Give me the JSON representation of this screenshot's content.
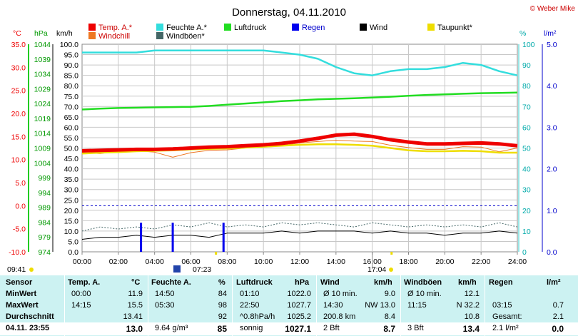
{
  "chart_data": {
    "type": "line",
    "title": "Donnerstag, 04.11.2010",
    "credit": "© Weber Mike",
    "x_label_start": "09:41",
    "x_ticks": [
      "00:00",
      "02:00",
      "04:00",
      "06:00",
      "08:00",
      "10:00",
      "12:00",
      "14:00",
      "16:00",
      "18:00",
      "20:00",
      "22:00",
      "24:00"
    ],
    "sun_marks": [
      "07:23",
      "17:04"
    ],
    "axes": {
      "temp": {
        "unit": "°C",
        "ticks": [
          35.0,
          30.0,
          25.0,
          20.0,
          15.0,
          10.0,
          5.0,
          0.0,
          -5.0,
          -10.0
        ],
        "range": [
          -10,
          35
        ]
      },
      "pressure": {
        "unit": "hPa",
        "ticks": [
          1044,
          1039,
          1034,
          1029,
          1024,
          1019,
          1014,
          1009,
          1004,
          999,
          994,
          989,
          984,
          979,
          974
        ],
        "range": [
          974,
          1044
        ]
      },
      "wind": {
        "unit": "km/h",
        "ticks": [
          100.0,
          95.0,
          90.0,
          85.0,
          80.0,
          75.0,
          70.0,
          65.0,
          60.0,
          55.0,
          50.0,
          45.0,
          40.0,
          35.0,
          30.0,
          25.0,
          20.0,
          15.0,
          10.0,
          5.0,
          0.0
        ],
        "range": [
          0,
          100
        ]
      },
      "humidity": {
        "unit": "%",
        "ticks": [
          100,
          90,
          80,
          70,
          60,
          50,
          40,
          30,
          20,
          10,
          0
        ],
        "range": [
          0,
          100
        ]
      },
      "rain": {
        "unit": "l/m²",
        "ticks": [
          "5.0",
          "4.0",
          "3.0",
          "2.0",
          "1.0",
          "0.0"
        ],
        "range": [
          0,
          5
        ]
      }
    },
    "legend": [
      {
        "name": "Temp. A.*",
        "color": "#ee0000"
      },
      {
        "name": "Feuchte A.*",
        "color": "#33dddd"
      },
      {
        "name": "Luftdruck",
        "color": "#22dd22"
      },
      {
        "name": "Regen",
        "color": "#0000ee"
      },
      {
        "name": "Wind",
        "color": "#000000"
      },
      {
        "name": "Taupunkt*",
        "color": "#eedd00"
      },
      {
        "name": "Windchill",
        "color": "#ee7722"
      },
      {
        "name": "Windböen*",
        "color": "#446666"
      }
    ],
    "series": [
      {
        "name": "Temp. A.*",
        "axis": "temp",
        "color": "#ee0000",
        "x": [
          0,
          1,
          2,
          3,
          4,
          5,
          6,
          7,
          8,
          9,
          10,
          11,
          12,
          13,
          14,
          15,
          16,
          17,
          18,
          19,
          20,
          21,
          22,
          23,
          24
        ],
        "values": [
          11.9,
          12.0,
          12.1,
          12.2,
          12.2,
          12.3,
          12.5,
          12.7,
          12.8,
          13.0,
          13.2,
          13.5,
          14.0,
          14.6,
          15.3,
          15.5,
          15.0,
          14.3,
          13.8,
          13.4,
          13.4,
          13.5,
          13.6,
          13.4,
          13.0
        ]
      },
      {
        "name": "Feuchte A.*",
        "axis": "humidity",
        "color": "#33dddd",
        "x": [
          0,
          1,
          2,
          3,
          4,
          5,
          6,
          7,
          8,
          9,
          10,
          11,
          12,
          13,
          14,
          15,
          16,
          17,
          18,
          19,
          20,
          21,
          22,
          23,
          24
        ],
        "values": [
          96,
          96,
          96,
          96,
          97,
          97,
          97,
          97,
          97,
          97,
          97,
          96,
          95,
          93,
          89,
          86,
          85,
          87,
          88,
          88,
          89,
          91,
          90,
          87,
          85
        ]
      },
      {
        "name": "Luftdruck",
        "axis": "pressure",
        "color": "#22dd22",
        "x": [
          0,
          1,
          2,
          3,
          4,
          5,
          6,
          7,
          8,
          9,
          10,
          11,
          12,
          13,
          14,
          15,
          16,
          17,
          18,
          19,
          20,
          21,
          22,
          23,
          24
        ],
        "values": [
          1022.0,
          1022.3,
          1022.5,
          1022.6,
          1022.7,
          1022.8,
          1022.9,
          1023.2,
          1023.6,
          1024.0,
          1024.4,
          1024.8,
          1025.1,
          1025.4,
          1025.6,
          1025.8,
          1026.0,
          1026.3,
          1026.6,
          1026.9,
          1027.1,
          1027.3,
          1027.5,
          1027.6,
          1027.7
        ]
      },
      {
        "name": "Taupunkt*",
        "axis": "temp",
        "color": "#eedd00",
        "x": [
          0,
          1,
          2,
          3,
          4,
          5,
          6,
          7,
          8,
          9,
          10,
          11,
          12,
          13,
          14,
          15,
          16,
          17,
          18,
          19,
          20,
          21,
          22,
          23,
          24
        ],
        "values": [
          11.3,
          11.5,
          11.6,
          11.8,
          11.9,
          12.0,
          12.2,
          12.3,
          12.4,
          12.6,
          12.8,
          13.0,
          13.2,
          13.3,
          13.3,
          13.2,
          13.0,
          12.5,
          12.0,
          11.8,
          11.8,
          11.9,
          11.8,
          11.5,
          11.5
        ]
      },
      {
        "name": "Windchill",
        "axis": "temp",
        "color": "#ee7722",
        "x": [
          0,
          1,
          2,
          3,
          4,
          5,
          6,
          7,
          8,
          9,
          10,
          11,
          12,
          13,
          14,
          15,
          16,
          17,
          18,
          19,
          20,
          21,
          22,
          23,
          24
        ],
        "values": [
          11.5,
          11.3,
          11.8,
          11.9,
          11.6,
          10.5,
          11.5,
          12.0,
          12.1,
          12.5,
          12.9,
          13.0,
          13.6,
          13.9,
          14.2,
          14.0,
          13.9,
          13.1,
          12.6,
          12.2,
          12.2,
          12.8,
          12.7,
          11.7,
          12.5
        ]
      },
      {
        "name": "Wind",
        "axis": "wind",
        "color": "#000000",
        "x": [
          0,
          1,
          2,
          3,
          4,
          5,
          6,
          7,
          8,
          9,
          10,
          11,
          12,
          13,
          14,
          15,
          16,
          17,
          18,
          19,
          20,
          21,
          22,
          23,
          24
        ],
        "values": [
          6,
          7,
          7,
          8,
          7,
          8,
          8,
          7,
          9,
          9,
          9,
          10,
          9,
          10,
          10,
          10,
          9,
          10,
          9,
          9,
          8,
          9,
          9,
          10,
          9
        ]
      },
      {
        "name": "Windböen*",
        "axis": "wind",
        "color": "#446666",
        "x": [
          0,
          1,
          2,
          3,
          4,
          5,
          6,
          7,
          8,
          9,
          10,
          11,
          12,
          13,
          14,
          15,
          16,
          17,
          18,
          19,
          20,
          21,
          22,
          23,
          24
        ],
        "values": [
          10,
          12,
          11,
          12,
          11,
          13,
          12,
          14,
          12,
          13,
          12,
          14,
          13,
          14,
          13,
          12,
          14,
          13,
          12,
          13,
          12,
          13,
          12,
          14,
          12
        ]
      },
      {
        "name": "Regen",
        "axis": "rain",
        "color": "#0000ee",
        "type": "bar",
        "x": [
          3.25,
          5.0,
          7.8
        ],
        "values": [
          0.7,
          0.7,
          0.7
        ]
      }
    ]
  },
  "stats": {
    "headers": {
      "sensor": "Sensor",
      "temp": "Temp. A.",
      "temp_unit": "°C",
      "hum": "Feuchte A.",
      "hum_unit": "%",
      "press": "Luftdruck",
      "press_unit": "hPa",
      "wind": "Wind",
      "wind_unit": "km/h",
      "gust": "Windböen",
      "gust_unit": "km/h",
      "rain": "Regen",
      "rain_unit": "l/m²"
    },
    "rows": [
      {
        "label": "MinWert",
        "temp_t": "00:00",
        "temp_v": "11.9",
        "hum_t": "14:50",
        "hum_v": "84",
        "press_t": "01:10",
        "press_v": "1022.0",
        "wind_t": "Ø 10 min.",
        "wind_v": "9.0",
        "gust_t": "Ø 10 min.",
        "gust_v": "12.1",
        "rain_t": "",
        "rain_v": ""
      },
      {
        "label": "MaxWert",
        "temp_t": "14:15",
        "temp_v": "15.5",
        "hum_t": "05:30",
        "hum_v": "98",
        "press_t": "22:50",
        "press_v": "1027.7",
        "wind_t": "14:30",
        "wind_v": "NW 13.0",
        "gust_t": "11:15",
        "gust_v": "N 32.2",
        "rain_t": "03:15",
        "rain_v": "0.7"
      },
      {
        "label": "Durchschnitt",
        "temp_t": "",
        "temp_v": "13.41",
        "hum_t": "",
        "hum_v": "92",
        "press_t": "^0.8hPa/h",
        "press_v": "1025.2",
        "wind_t": "200.8 km",
        "wind_v": "8.4",
        "gust_t": "",
        "gust_v": "10.8",
        "rain_t": "Gesamt:",
        "rain_v": "2.1"
      },
      {
        "label": "04.11. 23:55",
        "temp_t": "",
        "temp_v": "13.0",
        "hum_t": "9.64 g/m³",
        "hum_v": "85",
        "press_t": "sonnig",
        "press_v": "1027.1",
        "wind_t": "2 Bft",
        "wind_v": "8.7",
        "gust_t": "3 Bft",
        "gust_v": "13.4",
        "rain_t": "2.1 l/m²",
        "rain_v": "0.0"
      }
    ]
  }
}
